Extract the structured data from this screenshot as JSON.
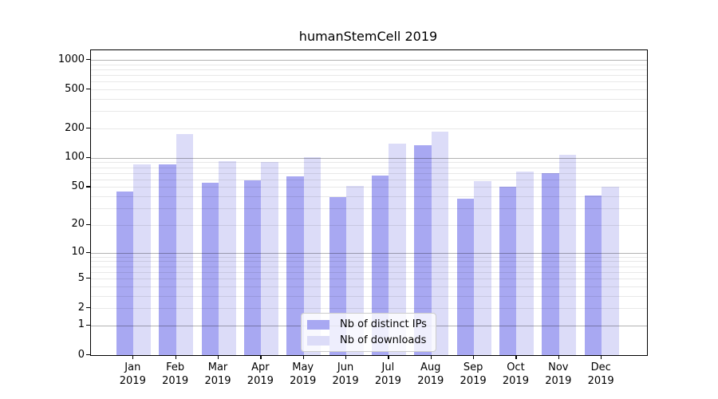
{
  "title": "humanStemCell 2019",
  "legend": {
    "items": [
      {
        "label": "Nb of distinct IPs",
        "series": "ips"
      },
      {
        "label": "Nb of downloads",
        "series": "downloads"
      }
    ]
  },
  "colors": {
    "ips": "#a8a8f2",
    "downloads": "#dcdcf8",
    "major_grid": "rgba(0,0,0,0.30)",
    "minor_grid": "rgba(0,0,0,0.09)",
    "axis": "#000000"
  },
  "x_axis": {
    "months": [
      "Jan",
      "Feb",
      "Mar",
      "Apr",
      "May",
      "Jun",
      "Jul",
      "Aug",
      "Sep",
      "Oct",
      "Nov",
      "Dec"
    ],
    "year": "2019"
  },
  "chart_data": {
    "type": "bar",
    "title": "humanStemCell 2019",
    "categories": [
      "Jan 2019",
      "Feb 2019",
      "Mar 2019",
      "Apr 2019",
      "May 2019",
      "Jun 2019",
      "Jul 2019",
      "Aug 2019",
      "Sep 2019",
      "Oct 2019",
      "Nov 2019",
      "Dec 2019"
    ],
    "series": [
      {
        "name": "Nb of distinct IPs",
        "values": [
          45,
          85,
          55,
          59,
          64,
          39,
          66,
          136,
          38,
          50,
          70,
          41
        ]
      },
      {
        "name": "Nb of downloads",
        "values": [
          85,
          177,
          93,
          90,
          102,
          51,
          140,
          184,
          58,
          73,
          108,
          50
        ]
      }
    ],
    "yscale": "log1p",
    "ylim": [
      0,
      1250
    ],
    "y_ticks": [
      0,
      1,
      2,
      5,
      10,
      20,
      50,
      100,
      200,
      500,
      1000
    ],
    "grid": true,
    "legend_position": "lower center",
    "xlabel": "",
    "ylabel": ""
  }
}
